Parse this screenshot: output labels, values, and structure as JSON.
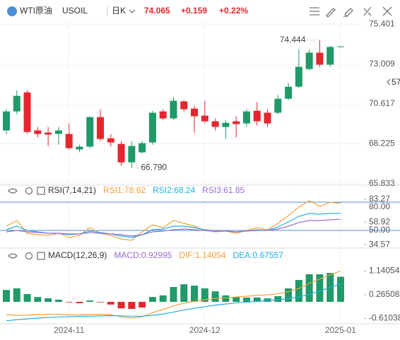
{
  "header": {
    "name": "WTI原油",
    "symbol": "USOIL",
    "period": "日K",
    "price": "74.065",
    "change": "+0.159",
    "change_pct": "+0.22%",
    "side_badge": "57"
  },
  "chart_data": [
    {
      "type": "candlestick",
      "up_color": "#1f9a68",
      "down_color": "#e5262e",
      "categories": [
        null,
        null,
        null,
        null,
        null,
        null,
        "2024-11",
        null,
        null,
        null,
        null,
        null,
        null,
        null,
        null,
        null,
        null,
        null,
        null,
        "2024-12",
        null,
        null,
        null,
        null,
        null,
        null,
        null,
        null,
        null,
        null,
        null,
        null,
        "2025-01"
      ],
      "open": [
        69.03,
        70.17,
        71.31,
        69.03,
        68.9,
        68.82,
        68.82,
        67.89,
        68.06,
        69.83,
        68.56,
        68.22,
        67.12,
        67.72,
        68.31,
        70.17,
        69.75,
        70.77,
        70.34,
        69.92,
        69.58,
        69.24,
        69.58,
        69.45,
        70.21,
        70.09,
        70.09,
        70.93,
        71.65,
        72.71,
        73.69,
        72.97,
        74.03
      ],
      "high": [
        70.3,
        71.44,
        71.44,
        69.24,
        69.24,
        69.24,
        69.45,
        68.18,
        69.88,
        70.3,
        68.82,
        68.39,
        68.39,
        68.39,
        70.21,
        70.3,
        71.02,
        70.85,
        70.51,
        70.81,
        69.75,
        69.66,
        69.88,
        70.3,
        70.72,
        70.3,
        71.15,
        71.87,
        73.9,
        73.9,
        74.444,
        74.11,
        74.11
      ],
      "low": [
        68.82,
        70.0,
        68.82,
        68.61,
        68.1,
        68.18,
        67.89,
        67.72,
        67.97,
        68.39,
        68.06,
        66.91,
        66.79,
        67.64,
        68.18,
        69.66,
        69.66,
        70.17,
        68.9,
        69.45,
        69.03,
        68.52,
        68.61,
        69.24,
        69.32,
        69.24,
        70.0,
        70.85,
        71.57,
        72.63,
        72.84,
        72.84,
        74.03
      ],
      "close": [
        70.17,
        71.1,
        68.94,
        68.82,
        68.78,
        69.03,
        67.97,
        68.06,
        69.83,
        68.52,
        68.31,
        67.12,
        68.1,
        68.27,
        70.09,
        69.75,
        70.81,
        70.3,
        69.88,
        69.58,
        69.24,
        69.49,
        69.41,
        70.17,
        69.58,
        69.45,
        70.93,
        71.65,
        72.84,
        73.69,
        72.97,
        74.03,
        74.065
      ],
      "ylim": [
        65.75,
        75.66
      ],
      "yticks": [
        75.401,
        73.009,
        70.617,
        68.225,
        65.833
      ],
      "grid": true,
      "annotations": [
        {
          "value": 74.444,
          "label": "74.444"
        },
        {
          "value": 66.79,
          "label": "66.790"
        }
      ]
    },
    {
      "type": "line",
      "title": "RSI(7,14,21)",
      "series": [
        {
          "name": "RSI1:78.62",
          "color": "#f2a03d",
          "values": [
            54.5,
            60.5,
            47,
            45.5,
            44.8,
            47,
            42.5,
            44.8,
            53,
            47,
            44.8,
            41,
            39.5,
            48.5,
            56,
            53,
            60.5,
            57.5,
            54.5,
            50,
            48.5,
            49.3,
            47,
            50,
            53,
            50.8,
            57.5,
            65.8,
            74.8,
            81.5,
            75.5,
            80,
            78.62
          ]
        },
        {
          "name": "RSI2:68.24",
          "color": "#22aee0",
          "values": [
            50.8,
            54.5,
            50,
            48.5,
            47,
            47,
            45.5,
            46.3,
            49.3,
            47.8,
            46.3,
            44,
            42.5,
            45.5,
            50.8,
            51.5,
            54.5,
            54.5,
            53,
            50.8,
            49.3,
            49.3,
            48.5,
            49.3,
            50.8,
            50,
            53.8,
            59,
            65,
            68,
            67.3,
            68,
            68.24
          ]
        },
        {
          "name": "RSI3:61.85",
          "color": "#9a6cd0",
          "values": [
            48.5,
            50,
            48.5,
            47.8,
            47,
            47,
            46.3,
            46.3,
            47.8,
            47,
            46.3,
            45.5,
            44,
            45.5,
            48.5,
            49.3,
            50.8,
            51.5,
            50.8,
            50,
            49.3,
            49.3,
            48.5,
            49.3,
            50,
            50,
            51.5,
            54.5,
            58.3,
            60.5,
            60.5,
            61.3,
            61.85
          ]
        }
      ],
      "ylim": [
        33.5,
        86
      ],
      "yticks": [
        {
          "value": 80,
          "label": "80.00"
        },
        83.27,
        58.92,
        {
          "value": 50,
          "label": "50.00"
        },
        34.57
      ],
      "levels": [
        80,
        50
      ],
      "level_color": "#4a8fd0"
    },
    {
      "type": "macd",
      "title": "MACD(12,26,9)",
      "series": [
        {
          "name": "MACD:0.92995",
          "color": "#9a6cd0",
          "up_color": "#1f9a68",
          "down_color": "#e5262e",
          "values": [
            0.44,
            0.5,
            0.29,
            0.18,
            0.13,
            0.08,
            -0.02,
            -0.05,
            0.05,
            -0.02,
            -0.1,
            -0.24,
            -0.26,
            -0.21,
            0.18,
            0.24,
            0.55,
            0.65,
            0.6,
            0.5,
            0.39,
            0.24,
            0.18,
            0.16,
            0.16,
            0.13,
            0.21,
            0.5,
            0.81,
            1.02,
            1.02,
            1.07,
            0.92995
          ]
        },
        {
          "name": "DIF:1.14054",
          "color": "#f2a03d",
          "values": [
            -0.47,
            -0.5,
            -0.49,
            -0.47,
            -0.46,
            -0.46,
            -0.48,
            -0.49,
            -0.47,
            -0.46,
            -0.48,
            -0.55,
            -0.6,
            -0.55,
            -0.4,
            -0.28,
            -0.15,
            -0.05,
            0.02,
            0.08,
            0.12,
            0.15,
            0.18,
            0.21,
            0.24,
            0.26,
            0.3,
            0.38,
            0.5,
            0.68,
            0.85,
            1.0,
            1.14054
          ]
        },
        {
          "name": "DEA:0.67557",
          "color": "#22aee0",
          "values": [
            -0.7,
            -0.66,
            -0.63,
            -0.6,
            -0.58,
            -0.56,
            -0.55,
            -0.54,
            -0.53,
            -0.52,
            -0.51,
            -0.52,
            -0.53,
            -0.53,
            -0.5,
            -0.45,
            -0.38,
            -0.3,
            -0.24,
            -0.18,
            -0.12,
            -0.08,
            -0.04,
            -0.01,
            0.02,
            0.05,
            0.08,
            0.12,
            0.18,
            0.28,
            0.4,
            0.53,
            0.67557
          ]
        }
      ],
      "ylim": [
        -0.81,
        1.44
      ],
      "yticks": [
        1.14054,
        0.26508,
        -0.61038
      ]
    }
  ]
}
